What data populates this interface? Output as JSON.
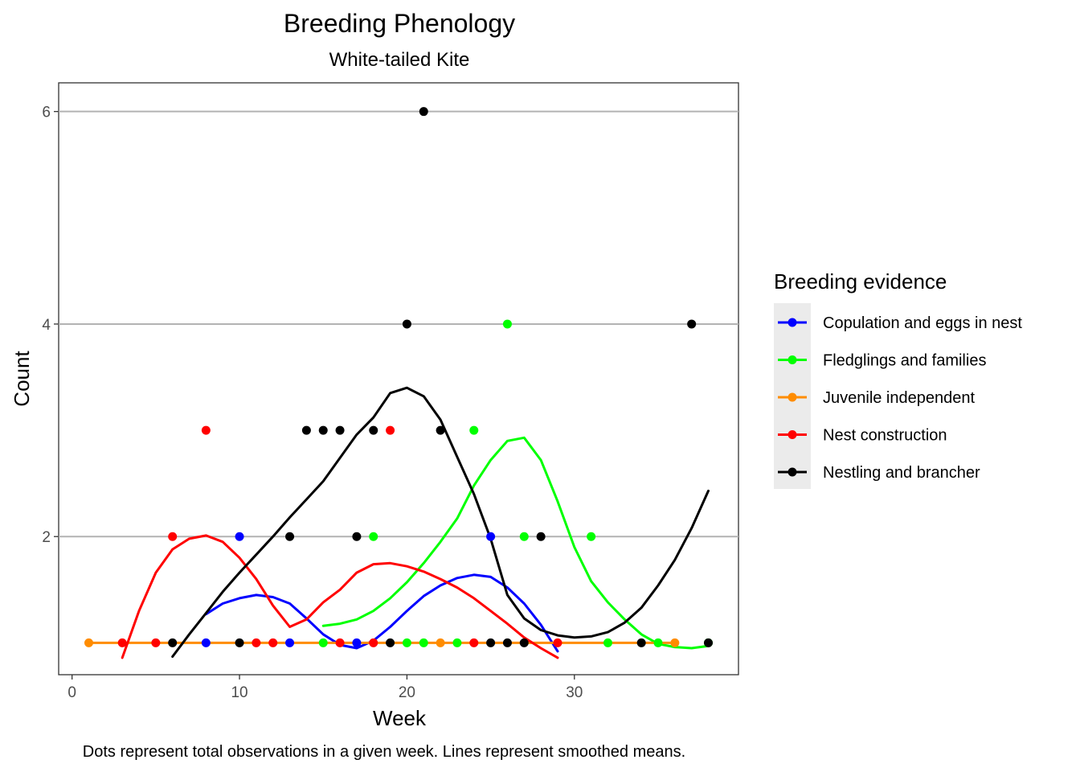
{
  "chart_data": {
    "type": "scatter",
    "title": "Breeding Phenology",
    "subtitle": "White-tailed Kite",
    "xlabel": "Week",
    "ylabel": "Count",
    "caption": "Dots represent total observations in a given week. Lines represent smoothed means.",
    "xlim": [
      -0.8,
      39.8
    ],
    "ylim": [
      0.7,
      6.27
    ],
    "xticks": [
      0,
      10,
      20,
      30
    ],
    "yticks": [
      2,
      4,
      6
    ],
    "grid": "horizontal major lines",
    "legend": {
      "title": "Breeding evidence",
      "placement": "right"
    },
    "series": [
      {
        "name": "Copulation and eggs in nest",
        "color": "#0000ff",
        "points": [
          [
            8,
            1
          ],
          [
            10,
            2
          ],
          [
            13,
            1
          ],
          [
            17,
            1
          ],
          [
            25,
            2
          ]
        ],
        "smooth": [
          [
            8,
            1.27
          ],
          [
            9,
            1.37
          ],
          [
            10,
            1.42
          ],
          [
            11,
            1.45
          ],
          [
            12,
            1.43
          ],
          [
            13,
            1.37
          ],
          [
            14,
            1.23
          ],
          [
            15,
            1.08
          ],
          [
            16,
            0.98
          ],
          [
            17,
            0.95
          ],
          [
            18,
            1.02
          ],
          [
            19,
            1.15
          ],
          [
            20,
            1.3
          ],
          [
            21,
            1.44
          ],
          [
            22,
            1.54
          ],
          [
            23,
            1.61
          ],
          [
            24,
            1.64
          ],
          [
            25,
            1.62
          ],
          [
            26,
            1.52
          ],
          [
            27,
            1.37
          ],
          [
            28,
            1.17
          ],
          [
            29,
            0.92
          ]
        ]
      },
      {
        "name": "Fledglings and families",
        "color": "#00ff00",
        "points": [
          [
            15,
            1
          ],
          [
            18,
            2
          ],
          [
            20,
            1
          ],
          [
            21,
            1
          ],
          [
            23,
            1
          ],
          [
            24,
            3
          ],
          [
            26,
            4
          ],
          [
            27,
            2
          ],
          [
            31,
            2
          ],
          [
            32,
            1
          ],
          [
            35,
            1
          ],
          [
            38,
            1
          ]
        ],
        "smooth": [
          [
            15,
            1.16
          ],
          [
            16,
            1.18
          ],
          [
            17,
            1.22
          ],
          [
            18,
            1.3
          ],
          [
            19,
            1.42
          ],
          [
            20,
            1.57
          ],
          [
            21,
            1.75
          ],
          [
            22,
            1.95
          ],
          [
            23,
            2.17
          ],
          [
            24,
            2.48
          ],
          [
            25,
            2.72
          ],
          [
            26,
            2.9
          ],
          [
            27,
            2.93
          ],
          [
            28,
            2.72
          ],
          [
            29,
            2.33
          ],
          [
            30,
            1.9
          ],
          [
            31,
            1.58
          ],
          [
            32,
            1.38
          ],
          [
            33,
            1.22
          ],
          [
            34,
            1.08
          ],
          [
            35,
            0.99
          ],
          [
            36,
            0.96
          ],
          [
            37,
            0.95
          ],
          [
            38,
            0.97
          ]
        ]
      },
      {
        "name": "Juvenile independent",
        "color": "#ff8c00",
        "points": [
          [
            1,
            1
          ],
          [
            22,
            1
          ],
          [
            36,
            1
          ]
        ],
        "smooth": [
          [
            1,
            1
          ],
          [
            36,
            1
          ]
        ]
      },
      {
        "name": "Nest construction",
        "color": "#ff0000",
        "points": [
          [
            3,
            1
          ],
          [
            5,
            1
          ],
          [
            6,
            2
          ],
          [
            8,
            3
          ],
          [
            11,
            1
          ],
          [
            12,
            1
          ],
          [
            16,
            1
          ],
          [
            18,
            1
          ],
          [
            19,
            3
          ],
          [
            24,
            1
          ],
          [
            29,
            1
          ]
        ],
        "smooth": [
          [
            3,
            0.86
          ],
          [
            4,
            1.3
          ],
          [
            5,
            1.66
          ],
          [
            6,
            1.88
          ],
          [
            7,
            1.98
          ],
          [
            8,
            2.01
          ],
          [
            9,
            1.95
          ],
          [
            10,
            1.8
          ],
          [
            11,
            1.6
          ],
          [
            12,
            1.35
          ],
          [
            13,
            1.15
          ],
          [
            14,
            1.22
          ],
          [
            15,
            1.38
          ],
          [
            16,
            1.5
          ],
          [
            17,
            1.66
          ],
          [
            18,
            1.74
          ],
          [
            19,
            1.75
          ],
          [
            20,
            1.72
          ],
          [
            21,
            1.67
          ],
          [
            22,
            1.6
          ],
          [
            23,
            1.52
          ],
          [
            24,
            1.42
          ],
          [
            25,
            1.3
          ],
          [
            26,
            1.18
          ],
          [
            27,
            1.05
          ],
          [
            28,
            0.95
          ],
          [
            29,
            0.86
          ]
        ]
      },
      {
        "name": "Nestling and brancher",
        "color": "#000000",
        "points": [
          [
            6,
            1
          ],
          [
            10,
            1
          ],
          [
            13,
            2
          ],
          [
            14,
            3
          ],
          [
            15,
            3
          ],
          [
            16,
            3
          ],
          [
            17,
            2
          ],
          [
            18,
            3
          ],
          [
            19,
            1
          ],
          [
            20,
            4
          ],
          [
            21,
            6
          ],
          [
            22,
            3
          ],
          [
            25,
            1
          ],
          [
            26,
            1
          ],
          [
            27,
            1
          ],
          [
            28,
            2
          ],
          [
            34,
            1
          ],
          [
            37,
            4
          ],
          [
            38,
            1
          ]
        ],
        "smooth": [
          [
            6,
            0.87
          ],
          [
            7,
            1.08
          ],
          [
            8,
            1.28
          ],
          [
            9,
            1.48
          ],
          [
            10,
            1.66
          ],
          [
            11,
            1.83
          ],
          [
            12,
            2.0
          ],
          [
            13,
            2.18
          ],
          [
            14,
            2.35
          ],
          [
            15,
            2.52
          ],
          [
            16,
            2.74
          ],
          [
            17,
            2.96
          ],
          [
            18,
            3.12
          ],
          [
            19,
            3.35
          ],
          [
            20,
            3.4
          ],
          [
            21,
            3.32
          ],
          [
            22,
            3.1
          ],
          [
            23,
            2.75
          ],
          [
            24,
            2.4
          ],
          [
            25,
            1.98
          ],
          [
            26,
            1.45
          ],
          [
            27,
            1.23
          ],
          [
            28,
            1.12
          ],
          [
            29,
            1.07
          ],
          [
            30,
            1.05
          ],
          [
            31,
            1.06
          ],
          [
            32,
            1.1
          ],
          [
            33,
            1.19
          ],
          [
            34,
            1.33
          ],
          [
            35,
            1.54
          ],
          [
            36,
            1.78
          ],
          [
            37,
            2.08
          ],
          [
            38,
            2.43
          ]
        ]
      }
    ]
  }
}
